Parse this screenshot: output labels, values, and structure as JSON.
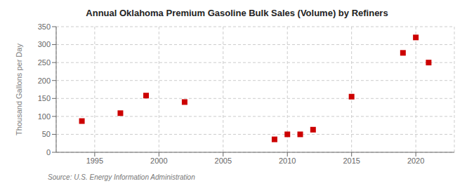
{
  "chart_data": {
    "type": "scatter",
    "title": "Annual Oklahoma Premium Gasoline Bulk Sales (Volume) by Refiners",
    "ylabel": "Thousand Gallons per Day",
    "annotations": [
      "Source: U.S. Energy Information Administration"
    ],
    "x": [
      1994,
      1997,
      1999,
      2002,
      2009,
      2010,
      2011,
      2012,
      2015,
      2019,
      2020,
      2021
    ],
    "values": [
      87,
      109,
      158,
      140,
      36,
      50,
      50,
      63,
      155,
      277,
      320,
      250
    ],
    "color": "#cc0000",
    "marker": "square",
    "xlim": [
      1992,
      2023
    ],
    "ylim": [
      0,
      350
    ],
    "xticks": [
      1995,
      2000,
      2005,
      2010,
      2015,
      2020
    ],
    "yticks": [
      0,
      50,
      100,
      150,
      200,
      250,
      300,
      350
    ],
    "grid": true
  }
}
